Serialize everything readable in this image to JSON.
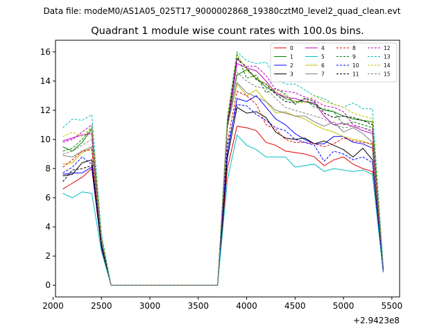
{
  "chart_data": {
    "type": "line",
    "suptitle": "Data file: modeM0/AS1A05_025T17_9000002868_19380cztM0_level2_quad_clean.evt",
    "title": "Quadrant 1 module wise count rates with 100.0s bins.",
    "xlabel": "",
    "ylabel": "",
    "x_offset_label": "+2.9423e8",
    "xlim": [
      2025,
      5580
    ],
    "ylim": [
      -0.8,
      16.8
    ],
    "x_ticks": [
      2000,
      2500,
      3000,
      3500,
      4000,
      4500,
      5000,
      5500
    ],
    "y_ticks": [
      0,
      2,
      4,
      6,
      8,
      10,
      12,
      14,
      16
    ],
    "grid": false,
    "legend_position": "top-right",
    "x": [
      2100,
      2200,
      2300,
      2400,
      2500,
      2600,
      2700,
      2800,
      2900,
      3000,
      3100,
      3200,
      3300,
      3400,
      3500,
      3600,
      3700,
      3800,
      3900,
      4000,
      4100,
      4200,
      4300,
      4400,
      4500,
      4600,
      4700,
      4800,
      4900,
      5000,
      5100,
      5200,
      5300,
      5410
    ],
    "series": [
      {
        "name": "0",
        "color": "#e00000",
        "dash": false,
        "values": [
          6.6,
          7.0,
          7.4,
          8.0,
          2.5,
          0,
          0,
          0,
          0,
          0,
          0,
          0,
          0,
          0,
          0,
          0,
          0,
          8.0,
          10.9,
          10.8,
          10.6,
          9.8,
          9.6,
          9.2,
          9.1,
          9.0,
          8.8,
          8.2,
          8.6,
          8.8,
          8.3,
          8.0,
          7.8,
          1.0
        ]
      },
      {
        "name": "1",
        "color": "#007f00",
        "dash": false,
        "values": [
          9.5,
          9.2,
          9.8,
          10.7,
          3.0,
          0,
          0,
          0,
          0,
          0,
          0,
          0,
          0,
          0,
          0,
          0,
          0,
          11.0,
          14.4,
          14.8,
          14.2,
          13.6,
          13.2,
          12.8,
          12.6,
          12.6,
          12.4,
          12.0,
          11.9,
          11.6,
          11.4,
          11.3,
          11.2,
          1.3
        ]
      },
      {
        "name": "2",
        "color": "#0000ff",
        "dash": false,
        "values": [
          7.6,
          7.7,
          7.7,
          8.1,
          2.6,
          0,
          0,
          0,
          0,
          0,
          0,
          0,
          0,
          0,
          0,
          0,
          0,
          9.0,
          12.8,
          12.6,
          13.0,
          12.2,
          11.4,
          11.0,
          10.4,
          10.0,
          9.7,
          9.7,
          10.2,
          10.2,
          9.8,
          9.7,
          9.4,
          1.1
        ]
      },
      {
        "name": "3",
        "color": "#000000",
        "dash": false,
        "values": [
          7.5,
          7.6,
          8.4,
          8.6,
          2.7,
          0,
          0,
          0,
          0,
          0,
          0,
          0,
          0,
          0,
          0,
          0,
          0,
          8.7,
          12.2,
          11.8,
          11.9,
          11.5,
          10.5,
          10.1,
          10.0,
          10.1,
          9.7,
          9.9,
          9.6,
          9.3,
          8.8,
          9.4,
          8.6,
          0.9
        ]
      },
      {
        "name": "4",
        "color": "#bf00bf",
        "dash": false,
        "values": [
          9.9,
          10.1,
          10.3,
          10.4,
          3.0,
          0,
          0,
          0,
          0,
          0,
          0,
          0,
          0,
          0,
          0,
          0,
          0,
          10.8,
          15.2,
          14.9,
          14.7,
          14.0,
          13.2,
          12.9,
          12.8,
          12.6,
          12.5,
          11.6,
          11.0,
          11.1,
          10.9,
          10.6,
          10.4,
          1.2
        ]
      },
      {
        "name": "5",
        "color": "#00bfbf",
        "dash": false,
        "values": [
          6.3,
          6.0,
          6.4,
          6.3,
          2.3,
          0,
          0,
          0,
          0,
          0,
          0,
          0,
          0,
          0,
          0,
          0,
          0,
          7.2,
          10.3,
          9.6,
          9.3,
          8.8,
          8.8,
          8.8,
          8.1,
          8.2,
          8.3,
          7.8,
          8.0,
          7.9,
          7.8,
          7.9,
          7.6,
          0.9
        ]
      },
      {
        "name": "6",
        "color": "#bfbf00",
        "dash": false,
        "values": [
          8.3,
          8.4,
          9.1,
          9.4,
          3.0,
          0,
          0,
          0,
          0,
          0,
          0,
          0,
          0,
          0,
          0,
          0,
          0,
          10.8,
          13.8,
          13.0,
          13.4,
          12.6,
          11.8,
          11.9,
          11.6,
          11.4,
          11.0,
          10.7,
          10.5,
          10.2,
          10.0,
          9.9,
          9.6,
          1.1
        ]
      },
      {
        "name": "7",
        "color": "#7f7f7f",
        "dash": false,
        "values": [
          8.9,
          8.8,
          9.2,
          9.5,
          3.0,
          0,
          0,
          0,
          0,
          0,
          0,
          0,
          0,
          0,
          0,
          0,
          0,
          10.9,
          13.9,
          13.2,
          12.9,
          12.6,
          12.0,
          11.8,
          11.6,
          11.6,
          11.2,
          10.9,
          11.2,
          10.5,
          10.8,
          10.4,
          9.8,
          1.2
        ]
      },
      {
        "name": "8",
        "color": "#e00000",
        "dash": true,
        "values": [
          8.1,
          8.6,
          9.2,
          9.3,
          2.9,
          0,
          0,
          0,
          0,
          0,
          0,
          0,
          0,
          0,
          0,
          0,
          0,
          9.8,
          13.3,
          13.0,
          12.4,
          11.0,
          10.7,
          10.0,
          9.8,
          9.8,
          9.7,
          9.5,
          9.7,
          10.1,
          9.9,
          9.8,
          9.7,
          1.1
        ]
      },
      {
        "name": "9",
        "color": "#007f00",
        "dash": true,
        "values": [
          9.2,
          9.4,
          10.0,
          10.8,
          3.1,
          0,
          0,
          0,
          0,
          0,
          0,
          0,
          0,
          0,
          0,
          0,
          0,
          11.2,
          15.8,
          14.2,
          14.4,
          13.2,
          13.5,
          13.1,
          12.4,
          12.8,
          12.2,
          12.1,
          11.9,
          11.0,
          11.2,
          11.0,
          10.8,
          1.3
        ]
      },
      {
        "name": "10",
        "color": "#0000ff",
        "dash": true,
        "values": [
          7.7,
          8.1,
          8.8,
          8.3,
          2.8,
          0,
          0,
          0,
          0,
          0,
          0,
          0,
          0,
          0,
          0,
          0,
          0,
          9.5,
          12.4,
          12.3,
          11.7,
          11.3,
          10.8,
          10.6,
          10.0,
          9.8,
          9.6,
          8.5,
          9.2,
          9.0,
          8.6,
          8.8,
          8.4,
          1.0
        ]
      },
      {
        "name": "11",
        "color": "#000000",
        "dash": true,
        "values": [
          7.1,
          7.9,
          8.0,
          8.2,
          2.7,
          0,
          0,
          0,
          0,
          0,
          0,
          0,
          0,
          0,
          0,
          0,
          0,
          11.0,
          15.6,
          14.9,
          14.1,
          13.8,
          13.1,
          12.6,
          12.5,
          12.8,
          12.6,
          11.8,
          11.5,
          11.6,
          11.5,
          11.3,
          11.0,
          1.2
        ]
      },
      {
        "name": "12",
        "color": "#bf00bf",
        "dash": true,
        "values": [
          9.8,
          10.0,
          10.5,
          11.0,
          3.2,
          0,
          0,
          0,
          0,
          0,
          0,
          0,
          0,
          0,
          0,
          0,
          0,
          11.3,
          15.5,
          15.0,
          15.0,
          14.4,
          13.4,
          13.3,
          13.2,
          12.9,
          12.7,
          12.3,
          12.2,
          11.9,
          11.0,
          10.8,
          10.6,
          1.2
        ]
      },
      {
        "name": "13",
        "color": "#00bfbf",
        "dash": true,
        "values": [
          10.8,
          11.4,
          11.3,
          11.7,
          3.5,
          0,
          0,
          0,
          0,
          0,
          0,
          0,
          0,
          0,
          0,
          0,
          0,
          11.5,
          16.0,
          15.4,
          15.2,
          15.3,
          14.2,
          13.8,
          13.8,
          13.4,
          13.0,
          12.8,
          12.4,
          12.2,
          12.5,
          12.1,
          12.1,
          1.4
        ]
      },
      {
        "name": "14",
        "color": "#bfbf00",
        "dash": true,
        "values": [
          10.2,
          10.5,
          10.2,
          10.9,
          3.3,
          0,
          0,
          0,
          0,
          0,
          0,
          0,
          0,
          0,
          0,
          0,
          0,
          11.4,
          15.9,
          14.7,
          14.2,
          13.8,
          13.3,
          13.0,
          12.6,
          12.5,
          13.0,
          12.6,
          12.4,
          12.2,
          11.8,
          11.6,
          11.4,
          1.3
        ]
      },
      {
        "name": "15",
        "color": "#7f7f7f",
        "dash": true,
        "values": [
          9.0,
          9.2,
          9.6,
          10.0,
          3.0,
          0,
          0,
          0,
          0,
          0,
          0,
          0,
          0,
          0,
          0,
          0,
          0,
          10.7,
          14.6,
          14.0,
          13.6,
          13.5,
          12.8,
          12.2,
          12.0,
          11.8,
          11.6,
          11.4,
          11.0,
          10.8,
          10.9,
          10.8,
          10.5,
          1.2
        ]
      }
    ]
  }
}
